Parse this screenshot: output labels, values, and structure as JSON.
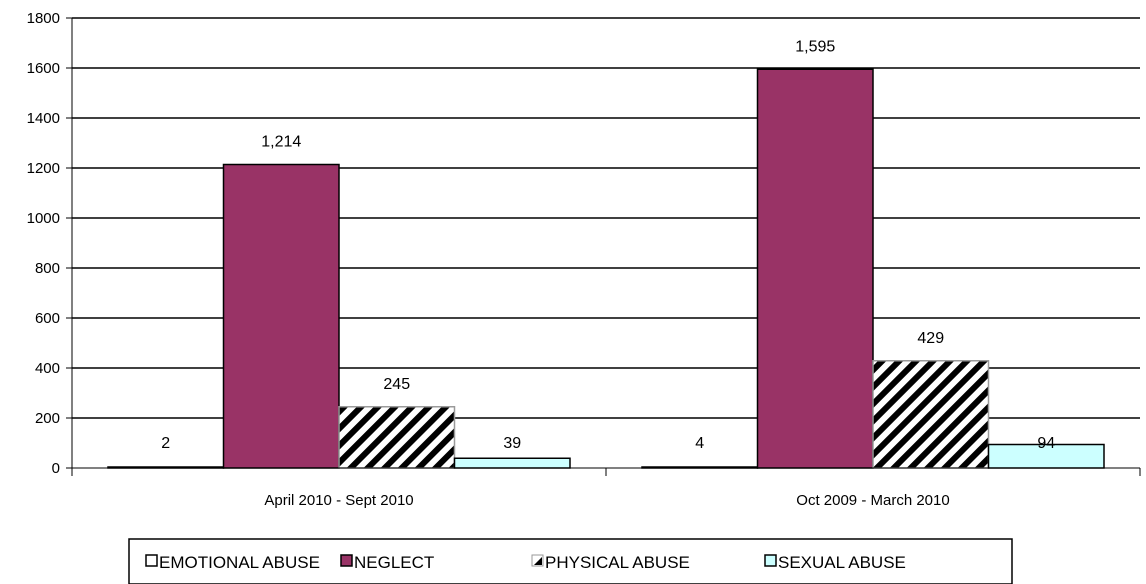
{
  "chart_data": {
    "type": "bar",
    "categories": [
      "April 2010 - Sept 2010",
      "Oct 2009 - March 2010"
    ],
    "series": [
      {
        "name": "EMOTIONAL ABUSE",
        "values": [
          2,
          4
        ],
        "labels": [
          "2",
          "4"
        ],
        "color": "#ffffff",
        "pattern": "none"
      },
      {
        "name": "NEGLECT",
        "values": [
          1214,
          1595
        ],
        "labels": [
          "1,214",
          "1,595"
        ],
        "color": "#993366",
        "pattern": "none"
      },
      {
        "name": "PHYSICAL ABUSE",
        "values": [
          245,
          429
        ],
        "labels": [
          "245",
          "429"
        ],
        "color": "#ffffff",
        "pattern": "diagonal-hatch"
      },
      {
        "name": "SEXUAL ABUSE",
        "values": [
          39,
          94
        ],
        "labels": [
          "39",
          "94"
        ],
        "color": "#ccffff",
        "pattern": "none"
      }
    ],
    "title": "",
    "xlabel": "",
    "ylabel": "",
    "ylim": [
      0,
      1800
    ],
    "yticks": [
      0,
      200,
      400,
      600,
      800,
      1000,
      1200,
      1400,
      1600,
      1800
    ],
    "grid": true,
    "legend_position": "bottom"
  }
}
